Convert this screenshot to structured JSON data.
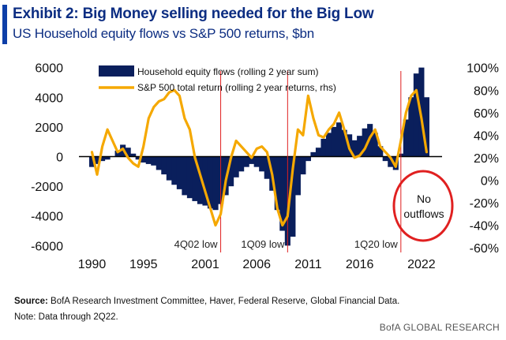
{
  "header": {
    "title": "Exhibit 2: Big Money selling needed for the Big Low",
    "subtitle": "US Household equity flows vs S&P 500 returns, $bn"
  },
  "footer": {
    "source_label": "Source:",
    "source_text": " BofA Research Investment Committee, Haver, Federal Reserve, Global Financial Data.",
    "note": "Note: Data through 2Q22.",
    "brand": "BofA GLOBAL RESEARCH"
  },
  "colors": {
    "title": "#0c2d82",
    "bars": "#0a1f5c",
    "line": "#f5a800",
    "vline": "#e02020",
    "circle": "#e02020",
    "accent_bar": "#0d3fa8"
  },
  "chart_data": {
    "type": "bar+line",
    "x_tick_labels": [
      "1990",
      "1995",
      "2001",
      "2006",
      "2011",
      "2016",
      "2022"
    ],
    "x_tick_years": [
      1990,
      1995,
      2001,
      2006,
      2011,
      2016,
      2022
    ],
    "x_range": [
      1989.5,
      2024
    ],
    "y_left": {
      "ticks": [
        -6000,
        -4000,
        -2000,
        0,
        2000,
        4000,
        6000
      ],
      "tick_labels": [
        "-6000",
        "-4000",
        "-2000",
        "0",
        "2000",
        "4000",
        "6000"
      ],
      "range": [
        -6300,
        6300
      ]
    },
    "y_right": {
      "ticks": [
        -60,
        -40,
        -20,
        0,
        20,
        40,
        60,
        80,
        100
      ],
      "tick_labels": [
        "-60%",
        "-40%",
        "-20%",
        "0%",
        "20%",
        "40%",
        "60%",
        "80%",
        "100%"
      ],
      "range": [
        -62,
        104
      ]
    },
    "legend": {
      "placement": "top-center",
      "entries": [
        "Household equity flows (rolling 2 year sum)",
        "S&P 500 total return (rolling 2 year returns, rhs)"
      ]
    },
    "series": [
      {
        "name": "Household equity flows (rolling 2 year sum)",
        "axis": "left",
        "kind": "bar",
        "x": [
          1990.0,
          1990.5,
          1991.0,
          1991.5,
          1992.0,
          1992.5,
          1993.0,
          1993.5,
          1994.0,
          1994.5,
          1995.0,
          1995.5,
          1996.0,
          1996.5,
          1997.0,
          1997.5,
          1998.0,
          1998.5,
          1999.0,
          1999.5,
          2000.0,
          2000.5,
          2001.0,
          2001.5,
          2002.0,
          2002.5,
          2003.0,
          2003.5,
          2004.0,
          2004.5,
          2005.0,
          2005.5,
          2006.0,
          2006.5,
          2007.0,
          2007.5,
          2008.0,
          2008.5,
          2009.0,
          2009.5,
          2010.0,
          2010.5,
          2011.0,
          2011.5,
          2012.0,
          2012.5,
          2013.0,
          2013.5,
          2014.0,
          2014.5,
          2015.0,
          2015.5,
          2016.0,
          2016.5,
          2017.0,
          2017.5,
          2018.0,
          2018.5,
          2019.0,
          2019.5,
          2020.0,
          2020.5,
          2021.0,
          2021.5,
          2022.0,
          2022.5
        ],
        "values": [
          -700,
          -500,
          -300,
          -200,
          0,
          400,
          800,
          600,
          200,
          -200,
          -400,
          -500,
          -600,
          -900,
          -1200,
          -1600,
          -1900,
          -2200,
          -2600,
          -2800,
          -3000,
          -3200,
          -3300,
          -3500,
          -3600,
          -3200,
          -2600,
          -2000,
          -1400,
          -1000,
          -700,
          -500,
          -700,
          -1000,
          -1500,
          -2300,
          -3600,
          -5000,
          -6000,
          -5400,
          -2600,
          -1200,
          -300,
          300,
          600,
          1200,
          1600,
          2000,
          2300,
          1800,
          1500,
          1100,
          1400,
          1900,
          2200,
          1600,
          700,
          -300,
          -700,
          -900,
          200,
          2500,
          4000,
          5600,
          6000,
          4000
        ]
      },
      {
        "name": "S&P 500 total return (rolling 2 year returns, rhs)",
        "axis": "right",
        "kind": "line",
        "x": [
          1990.0,
          1990.5,
          1991.0,
          1991.5,
          1992.0,
          1992.5,
          1993.0,
          1993.5,
          1994.0,
          1994.5,
          1995.0,
          1995.5,
          1996.0,
          1996.5,
          1997.0,
          1997.5,
          1998.0,
          1998.5,
          1999.0,
          1999.5,
          2000.0,
          2000.5,
          2001.0,
          2001.5,
          2002.0,
          2002.5,
          2003.0,
          2003.5,
          2004.0,
          2004.5,
          2005.0,
          2005.5,
          2006.0,
          2006.5,
          2007.0,
          2007.5,
          2008.0,
          2008.5,
          2009.0,
          2009.5,
          2010.0,
          2010.5,
          2011.0,
          2011.5,
          2012.0,
          2012.5,
          2013.0,
          2013.5,
          2014.0,
          2014.5,
          2015.0,
          2015.5,
          2016.0,
          2016.5,
          2017.0,
          2017.5,
          2018.0,
          2018.5,
          2019.0,
          2019.5,
          2020.0,
          2020.5,
          2021.0,
          2021.5,
          2022.0,
          2022.5
        ],
        "values": [
          25,
          5,
          30,
          45,
          35,
          25,
          28,
          20,
          15,
          12,
          30,
          55,
          65,
          70,
          72,
          78,
          80,
          75,
          55,
          45,
          20,
          5,
          -10,
          -25,
          -40,
          -30,
          0,
          20,
          35,
          30,
          25,
          20,
          28,
          30,
          25,
          5,
          -25,
          -40,
          -32,
          10,
          45,
          40,
          75,
          55,
          40,
          38,
          45,
          50,
          60,
          45,
          28,
          20,
          22,
          28,
          38,
          45,
          30,
          25,
          20,
          12,
          35,
          60,
          75,
          80,
          55,
          25
        ]
      }
    ],
    "vertical_markers": [
      {
        "x": 2002.5,
        "label": "4Q02 low"
      },
      {
        "x": 2009.0,
        "label": "1Q09 low"
      },
      {
        "x": 2020.0,
        "label": "1Q20 low"
      }
    ],
    "callout": {
      "text": "No outflows"
    }
  }
}
